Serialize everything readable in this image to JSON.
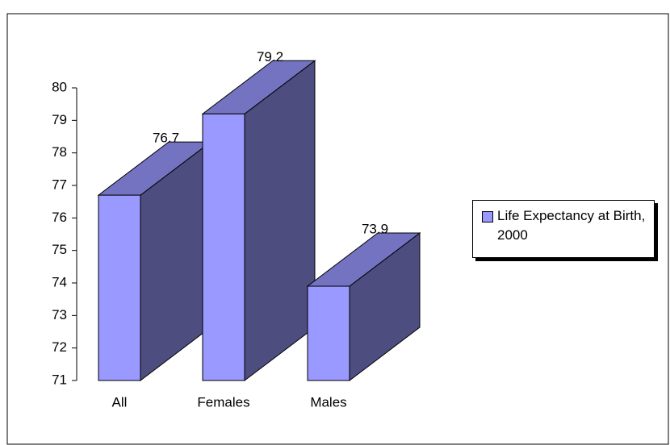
{
  "chart_data": {
    "type": "bar3d",
    "categories": [
      "All",
      "Females",
      "Males"
    ],
    "series": [
      {
        "name": "Life Expectancy at Birth, 2000",
        "color": "#9999ff",
        "values": [
          76.7,
          79.2,
          73.9
        ]
      }
    ],
    "ylim": [
      71,
      80
    ],
    "yticks": [
      71,
      72,
      73,
      74,
      75,
      76,
      77,
      78,
      79,
      80
    ],
    "legend": "right"
  }
}
